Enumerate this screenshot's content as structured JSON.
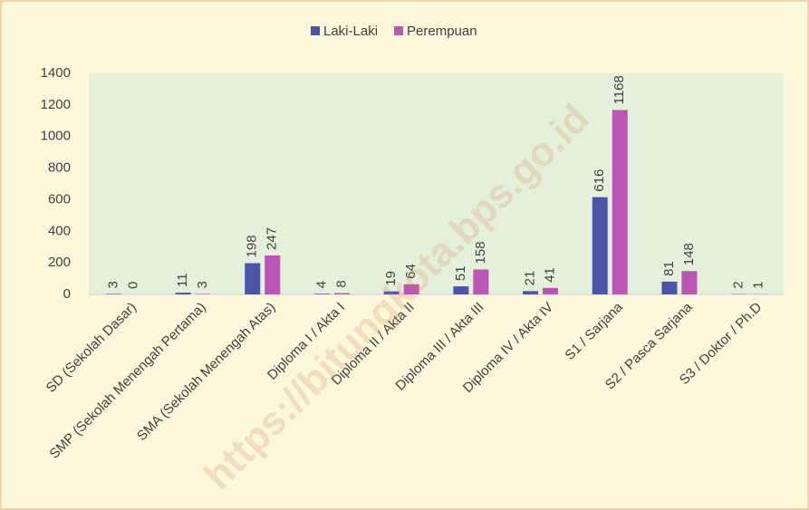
{
  "chart_data": {
    "type": "bar",
    "categories": [
      "SD (Sekolah Dasar)",
      "SMP (Sekolah Menengah Pertama)",
      "SMA (Sekolah Menengah Atas)",
      "Diploma I / Akta I",
      "Diploma II / Akta II",
      "Diploma III / Akta III",
      "Diploma IV / Akta IV",
      "S1 / Sarjana",
      "S2 / Pasca Sarjana",
      "S3 / Doktor / Ph.D"
    ],
    "series": [
      {
        "name": "Laki-Laki",
        "color": "#4a55a8",
        "values": [
          3,
          11,
          198,
          4,
          19,
          51,
          21,
          616,
          81,
          2
        ]
      },
      {
        "name": "Perempuan",
        "color": "#b957b3",
        "values": [
          0,
          3,
          247,
          8,
          64,
          158,
          41,
          1168,
          148,
          1
        ]
      }
    ],
    "ylim": [
      0,
      1400
    ],
    "yticks": [
      0,
      200,
      400,
      600,
      800,
      1000,
      1200,
      1400
    ],
    "grid": false,
    "legend": "top",
    "watermark": "https://bitungkota.bps.go.id"
  }
}
